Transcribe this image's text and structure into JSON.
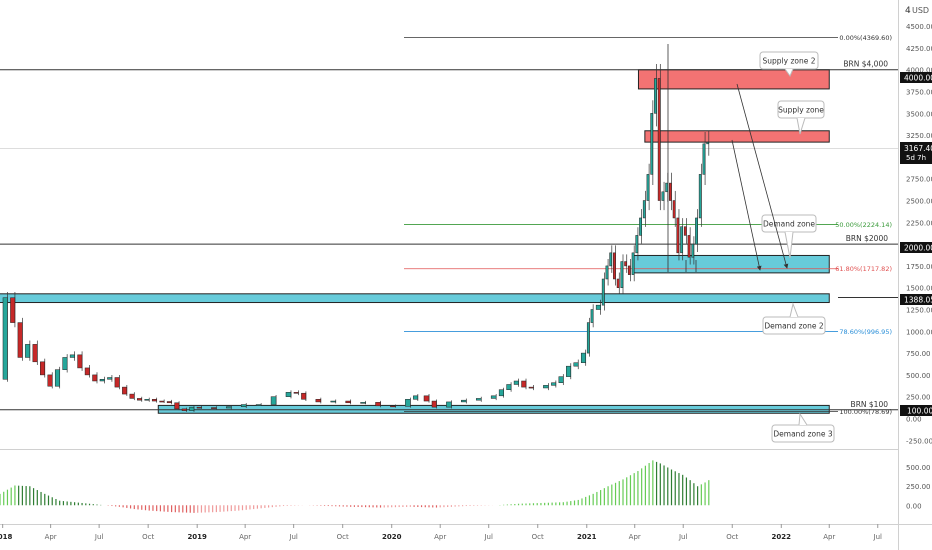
{
  "currency_label": "USD",
  "scale_menu": "4",
  "colors": {
    "up": "#26a69a",
    "down": "#c62828",
    "supply_fill": "#f26b6b",
    "demand_fill": "#5fc8d8",
    "fib_zero": "#333333",
    "fib_50": "#3a9a3a",
    "fib_618": "#e05050",
    "fib_786": "#2b8fd8",
    "osc_pos": "#66cc55",
    "osc_neg": "#e06060"
  },
  "price_labels": {
    "current": "3167.40",
    "countdown": "5d 7h",
    "brn_4000": "4000.00",
    "brn_2000": "2000.00",
    "level_1388": "1388.05",
    "brn_100": "100.00"
  },
  "horizontal_lines": [
    {
      "id": "brn-4000-line",
      "label": "BRN $4,000",
      "value": 4000
    },
    {
      "id": "brn-2000-line",
      "label": "BRN $2000",
      "value": 2000
    },
    {
      "id": "brn-100-line",
      "label": "BRN $100",
      "value": 100
    }
  ],
  "fib_levels": [
    {
      "id": "fib-0",
      "label": "0.00%(4369.60)",
      "value": 4369.6,
      "color_key": "fib_zero"
    },
    {
      "id": "fib-50",
      "label": "50.00%(2224.14)",
      "value": 2224.14,
      "color_key": "fib_50"
    },
    {
      "id": "fib-618",
      "label": "61.80%(1717.82)",
      "value": 1717.82,
      "color_key": "fib_618"
    },
    {
      "id": "fib-786",
      "label": "78.60%(996.95)",
      "value": 996.95,
      "color_key": "fib_786"
    },
    {
      "id": "fib-100",
      "label": "100.00%(78.69)",
      "value": 78.69,
      "color_key": "fib_zero"
    }
  ],
  "zones": [
    {
      "id": "supply-zone-2",
      "label": "Supply zone 2",
      "type": "supply",
      "top": 4000,
      "bottom": 3780,
      "start": "2021-04-08",
      "end": "2022-04-01"
    },
    {
      "id": "supply-zone",
      "label": "Supply zone",
      "type": "supply",
      "top": 3300,
      "bottom": 3170,
      "start": "2021-04-20",
      "end": "2022-04-01"
    },
    {
      "id": "demand-zone",
      "label": "Demand zone",
      "type": "demand",
      "top": 1870,
      "bottom": 1670,
      "start": "2021-03-29",
      "end": "2022-04-01"
    },
    {
      "id": "demand-zone-2",
      "label": "Demand zone 2",
      "type": "demand",
      "top": 1430,
      "bottom": 1330,
      "start": "2017-12-15",
      "end": "2022-04-01"
    },
    {
      "id": "demand-zone-3",
      "label": "Demand zone 3",
      "type": "demand",
      "top": 150,
      "bottom": 60,
      "start": "2018-10-20",
      "end": "2022-04-01"
    }
  ],
  "chart_data": {
    "type": "candlestick",
    "title": "",
    "y_axis": {
      "unit": "USD",
      "range": [
        -350,
        4800
      ],
      "ticks": [
        -250,
        0,
        250,
        500,
        750,
        1000,
        1250,
        1500,
        1750,
        2000,
        2250,
        2500,
        2750,
        3000,
        3250,
        3500,
        3750,
        4000,
        4250,
        4500
      ]
    },
    "x_axis": {
      "range": [
        "2017-12-27",
        "2022-08-08"
      ],
      "ticks": [
        {
          "label": "2018",
          "date": "2018-01-01",
          "bold": true
        },
        {
          "label": "Apr",
          "date": "2018-04-01"
        },
        {
          "label": "Jul",
          "date": "2018-07-01"
        },
        {
          "label": "Oct",
          "date": "2018-10-01"
        },
        {
          "label": "2019",
          "date": "2019-01-01",
          "bold": true
        },
        {
          "label": "Apr",
          "date": "2019-04-01"
        },
        {
          "label": "Jul",
          "date": "2019-07-01"
        },
        {
          "label": "Oct",
          "date": "2019-10-01"
        },
        {
          "label": "2020",
          "date": "2020-01-01",
          "bold": true
        },
        {
          "label": "Apr",
          "date": "2020-04-01"
        },
        {
          "label": "Jul",
          "date": "2020-07-01"
        },
        {
          "label": "Oct",
          "date": "2020-10-01"
        },
        {
          "label": "2021",
          "date": "2021-01-01",
          "bold": true
        },
        {
          "label": "Apr",
          "date": "2021-04-01"
        },
        {
          "label": "Jul",
          "date": "2021-07-01"
        },
        {
          "label": "Oct",
          "date": "2021-10-01"
        },
        {
          "label": "2022",
          "date": "2022-01-01",
          "bold": true
        },
        {
          "label": "Apr",
          "date": "2022-04-01"
        },
        {
          "label": "Jul",
          "date": "2022-07-01"
        }
      ]
    },
    "series": [
      {
        "kind": "price",
        "points": [
          [
            "2017-12-27",
            450
          ],
          [
            "2018-01-10",
            1385
          ],
          [
            "2018-01-24",
            1100
          ],
          [
            "2018-02-07",
            700
          ],
          [
            "2018-02-21",
            850
          ],
          [
            "2018-03-07",
            650
          ],
          [
            "2018-03-21",
            500
          ],
          [
            "2018-04-04",
            370
          ],
          [
            "2018-04-18",
            560
          ],
          [
            "2018-05-02",
            700
          ],
          [
            "2018-05-16",
            730
          ],
          [
            "2018-05-30",
            580
          ],
          [
            "2018-06-13",
            500
          ],
          [
            "2018-06-27",
            430
          ],
          [
            "2018-07-11",
            450
          ],
          [
            "2018-07-25",
            470
          ],
          [
            "2018-08-08",
            360
          ],
          [
            "2018-08-22",
            280
          ],
          [
            "2018-09-05",
            230
          ],
          [
            "2018-09-19",
            210
          ],
          [
            "2018-10-03",
            220
          ],
          [
            "2018-10-17",
            200
          ],
          [
            "2018-10-31",
            195
          ],
          [
            "2018-11-14",
            180
          ],
          [
            "2018-11-28",
            110
          ],
          [
            "2018-12-12",
            90
          ],
          [
            "2018-12-26",
            130
          ],
          [
            "2019-01-09",
            125
          ],
          [
            "2019-02-06",
            120
          ],
          [
            "2019-03-06",
            135
          ],
          [
            "2019-04-03",
            160
          ],
          [
            "2019-05-01",
            160
          ],
          [
            "2019-05-29",
            250
          ],
          [
            "2019-06-26",
            300
          ],
          [
            "2019-07-10",
            290
          ],
          [
            "2019-07-24",
            220
          ],
          [
            "2019-08-21",
            190
          ],
          [
            "2019-09-18",
            200
          ],
          [
            "2019-10-16",
            180
          ],
          [
            "2019-11-13",
            185
          ],
          [
            "2019-12-11",
            145
          ],
          [
            "2020-01-08",
            140
          ],
          [
            "2020-02-05",
            220
          ],
          [
            "2020-02-19",
            260
          ],
          [
            "2020-03-11",
            200
          ],
          [
            "2020-03-25",
            130
          ],
          [
            "2020-04-22",
            190
          ],
          [
            "2020-05-20",
            210
          ],
          [
            "2020-06-17",
            230
          ],
          [
            "2020-07-15",
            260
          ],
          [
            "2020-07-29",
            330
          ],
          [
            "2020-08-12",
            390
          ],
          [
            "2020-08-26",
            430
          ],
          [
            "2020-09-09",
            360
          ],
          [
            "2020-09-23",
            350
          ],
          [
            "2020-10-21",
            380
          ],
          [
            "2020-11-04",
            410
          ],
          [
            "2020-11-18",
            480
          ],
          [
            "2020-12-02",
            600
          ],
          [
            "2020-12-16",
            640
          ],
          [
            "2020-12-30",
            750
          ],
          [
            "2021-01-06",
            1100
          ],
          [
            "2021-01-13",
            1250
          ],
          [
            "2021-01-27",
            1300
          ],
          [
            "2021-02-03",
            1600
          ],
          [
            "2021-02-10",
            1750
          ],
          [
            "2021-02-17",
            1900
          ],
          [
            "2021-02-24",
            1600
          ],
          [
            "2021-03-03",
            1500
          ],
          [
            "2021-03-10",
            1800
          ],
          [
            "2021-03-17",
            1750
          ],
          [
            "2021-03-24",
            1650
          ],
          [
            "2021-03-31",
            1900
          ],
          [
            "2021-04-07",
            2100
          ],
          [
            "2021-04-14",
            2300
          ],
          [
            "2021-04-21",
            2500
          ],
          [
            "2021-04-28",
            2800
          ],
          [
            "2021-05-05",
            3500
          ],
          [
            "2021-05-12",
            3900
          ],
          [
            "2021-05-19",
            2500
          ],
          [
            "2021-05-26",
            2600
          ],
          [
            "2021-06-02",
            2700
          ],
          [
            "2021-06-09",
            2500
          ],
          [
            "2021-06-16",
            2300
          ],
          [
            "2021-06-23",
            1900
          ],
          [
            "2021-06-30",
            2200
          ],
          [
            "2021-07-07",
            2100
          ],
          [
            "2021-07-14",
            1850
          ],
          [
            "2021-07-21",
            2000
          ],
          [
            "2021-07-28",
            2300
          ],
          [
            "2021-08-04",
            2800
          ],
          [
            "2021-08-11",
            3150
          ],
          [
            "2021-08-18",
            3167.4
          ]
        ]
      }
    ],
    "oscillator": {
      "ticks": [
        0,
        250,
        500
      ],
      "range": [
        -220,
        700
      ],
      "points": [
        [
          "2017-12-27",
          150
        ],
        [
          "2018-01-24",
          260
        ],
        [
          "2018-02-21",
          250
        ],
        [
          "2018-03-21",
          150
        ],
        [
          "2018-04-18",
          60
        ],
        [
          "2018-05-16",
          40
        ],
        [
          "2018-06-13",
          20
        ],
        [
          "2018-07-11",
          0
        ],
        [
          "2018-08-08",
          -20
        ],
        [
          "2018-09-05",
          -50
        ],
        [
          "2018-10-03",
          -70
        ],
        [
          "2018-11-14",
          -90
        ],
        [
          "2018-12-26",
          -100
        ],
        [
          "2019-02-06",
          -90
        ],
        [
          "2019-03-20",
          -70
        ],
        [
          "2019-05-01",
          -40
        ],
        [
          "2019-06-12",
          -10
        ],
        [
          "2019-07-24",
          0
        ],
        [
          "2019-09-04",
          -10
        ],
        [
          "2019-10-16",
          -20
        ],
        [
          "2019-12-11",
          -30
        ],
        [
          "2020-02-05",
          -20
        ],
        [
          "2020-03-25",
          -30
        ],
        [
          "2020-05-20",
          -10
        ],
        [
          "2020-07-15",
          0
        ],
        [
          "2020-08-26",
          20
        ],
        [
          "2020-10-07",
          30
        ],
        [
          "2020-11-18",
          40
        ],
        [
          "2020-12-16",
          70
        ],
        [
          "2021-01-13",
          150
        ],
        [
          "2021-02-10",
          250
        ],
        [
          "2021-03-10",
          340
        ],
        [
          "2021-04-07",
          450
        ],
        [
          "2021-05-05",
          590
        ],
        [
          "2021-05-19",
          550
        ],
        [
          "2021-06-09",
          470
        ],
        [
          "2021-06-30",
          400
        ],
        [
          "2021-07-14",
          330
        ],
        [
          "2021-07-28",
          250
        ],
        [
          "2021-08-11",
          300
        ],
        [
          "2021-08-18",
          330
        ]
      ]
    }
  }
}
